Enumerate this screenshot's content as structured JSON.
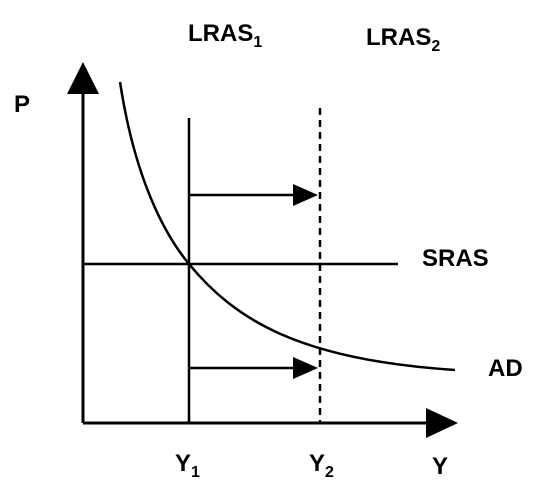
{
  "axes": {
    "y_label": "P",
    "x_label": "Y"
  },
  "curves": {
    "lras1": {
      "base": "LRAS",
      "sub": "1"
    },
    "lras2": {
      "base": "LRAS",
      "sub": "2"
    },
    "sras": "SRAS",
    "ad": "AD"
  },
  "ticks": {
    "y1": {
      "base": "Y",
      "sub": "1"
    },
    "y2": {
      "base": "Y",
      "sub": "2"
    }
  },
  "arrows": [
    {
      "from": "LRAS1",
      "to": "LRAS2"
    },
    {
      "from": "Y1",
      "to": "Y2"
    }
  ],
  "colors": {
    "ink": "#000000",
    "background": "#ffffff"
  }
}
